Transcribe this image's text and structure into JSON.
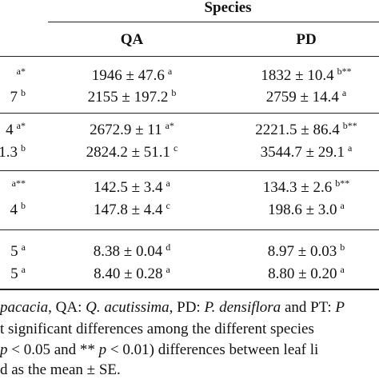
{
  "header": {
    "group": "Species",
    "columns": [
      "QA",
      "PD"
    ]
  },
  "table": {
    "rows": [
      [
        {
          "main": "",
          "sup": "a*"
        },
        {
          "main": "1946 ± 47.6",
          "sup": "a"
        },
        {
          "main": "1832 ± 10.4",
          "sup": "b**"
        }
      ],
      [
        {
          "main": "7",
          "sup": "b"
        },
        {
          "main": "2155 ± 197.2",
          "sup": "b"
        },
        {
          "main": "2759 ± 14.4",
          "sup": "a"
        }
      ],
      [
        {
          "main": "4",
          "sup": "a*"
        },
        {
          "main": "2672.9 ± 11",
          "sup": "a*"
        },
        {
          "main": "2221.5 ± 86.4",
          "sup": "b**"
        }
      ],
      [
        {
          "main": "1.3",
          "sup": "b"
        },
        {
          "main": "2824.2 ± 51.1",
          "sup": "c"
        },
        {
          "main": "3544.7 ± 29.1",
          "sup": "a"
        }
      ],
      [
        {
          "main": "",
          "sup": "a**"
        },
        {
          "main": "142.5 ± 3.4",
          "sup": "a"
        },
        {
          "main": "134.3 ± 2.6",
          "sup": "b**"
        }
      ],
      [
        {
          "main": "4",
          "sup": "b"
        },
        {
          "main": "147.8 ± 4.4",
          "sup": "c"
        },
        {
          "main": "198.6 ± 3.0",
          "sup": "a"
        }
      ],
      [
        {
          "main": "5",
          "sup": "a"
        },
        {
          "main": "8.38 ± 0.04",
          "sup": "d"
        },
        {
          "main": "8.97 ± 0.03",
          "sup": "b"
        }
      ],
      [
        {
          "main": "5",
          "sup": "a"
        },
        {
          "main": "8.40 ± 0.28",
          "sup": "a"
        },
        {
          "main": "8.80 ± 0.20",
          "sup": "a"
        }
      ]
    ]
  },
  "footnote": [
    [
      "",
      "pacacia",
      ", QA: ",
      "Q. acutissima",
      ", PD: ",
      "P. densiflora",
      " and PT: ",
      "P"
    ],
    [
      "t significant differences among the different species"
    ],
    [
      "",
      "p",
      " < 0.05 and ** ",
      "p",
      " < 0.01) differences between leaf li"
    ],
    [
      "d as the mean ± SE."
    ]
  ]
}
